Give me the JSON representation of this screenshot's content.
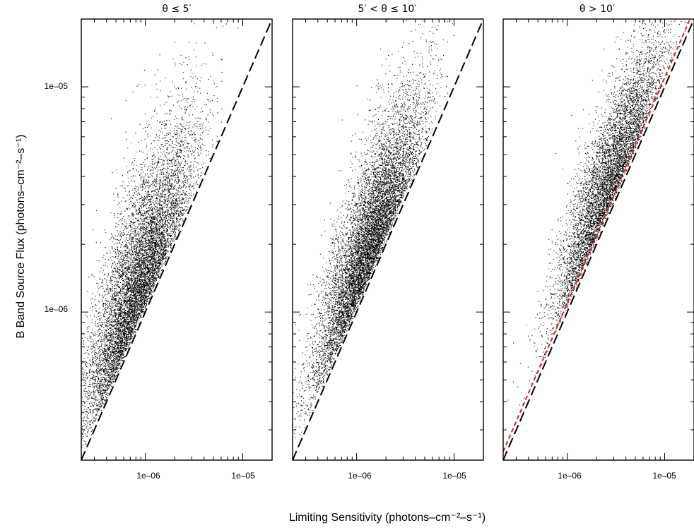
{
  "chart_data": {
    "type": "scatter",
    "xlabel": "Limiting Sensitivity (photons–cm⁻²–s⁻¹)",
    "ylabel": "B Band Source Flux (photons–cm⁻²–s⁻¹)",
    "x_scale": "log",
    "y_scale": "log",
    "xlim": [
      2.2e-07,
      2e-05
    ],
    "ylim": [
      2.2e-07,
      2e-05
    ],
    "x_tick_labels": [
      "1e–06",
      "1e–05"
    ],
    "y_tick_labels": [
      "1e–05",
      "1e–06"
    ],
    "x_ticks": [
      1e-06,
      1e-05
    ],
    "y_ticks": [
      1e-05,
      1e-06
    ],
    "grid": false,
    "colors": {
      "points": "#000000",
      "equality_line": "#000000",
      "fit_line": "#d62728"
    },
    "panels": [
      {
        "title": "θ ≤ 5′",
        "point_count": 9000,
        "flux_over_limit_median": 1.7,
        "point_density_peak_x": 8e-07,
        "lines": [
          {
            "style": "long-dash",
            "color": "#000000",
            "x": [
              2.2e-07,
              2e-05
            ],
            "y": [
              2.2e-07,
              2e-05
            ]
          }
        ]
      },
      {
        "title": "5′ < θ ≤ 10′",
        "point_count": 9000,
        "flux_over_limit_median": 1.6,
        "point_density_peak_x": 1.3e-06,
        "lines": [
          {
            "style": "long-dash",
            "color": "#000000",
            "x": [
              2.2e-07,
              2e-05
            ],
            "y": [
              2.2e-07,
              2e-05
            ]
          }
        ]
      },
      {
        "title": "θ > 10′",
        "point_count": 6500,
        "flux_over_limit_median": 1.5,
        "point_density_peak_x": 2.6e-06,
        "lines": [
          {
            "style": "long-dash",
            "color": "#000000",
            "x": [
              2.2e-07,
              2e-05
            ],
            "y": [
              2.2e-07,
              2e-05
            ]
          },
          {
            "style": "short-dash",
            "color": "#d62728",
            "x": [
              2.2e-07,
              2e-05
            ],
            "y": [
              2.4e-07,
              2.2e-05
            ]
          }
        ]
      }
    ]
  }
}
